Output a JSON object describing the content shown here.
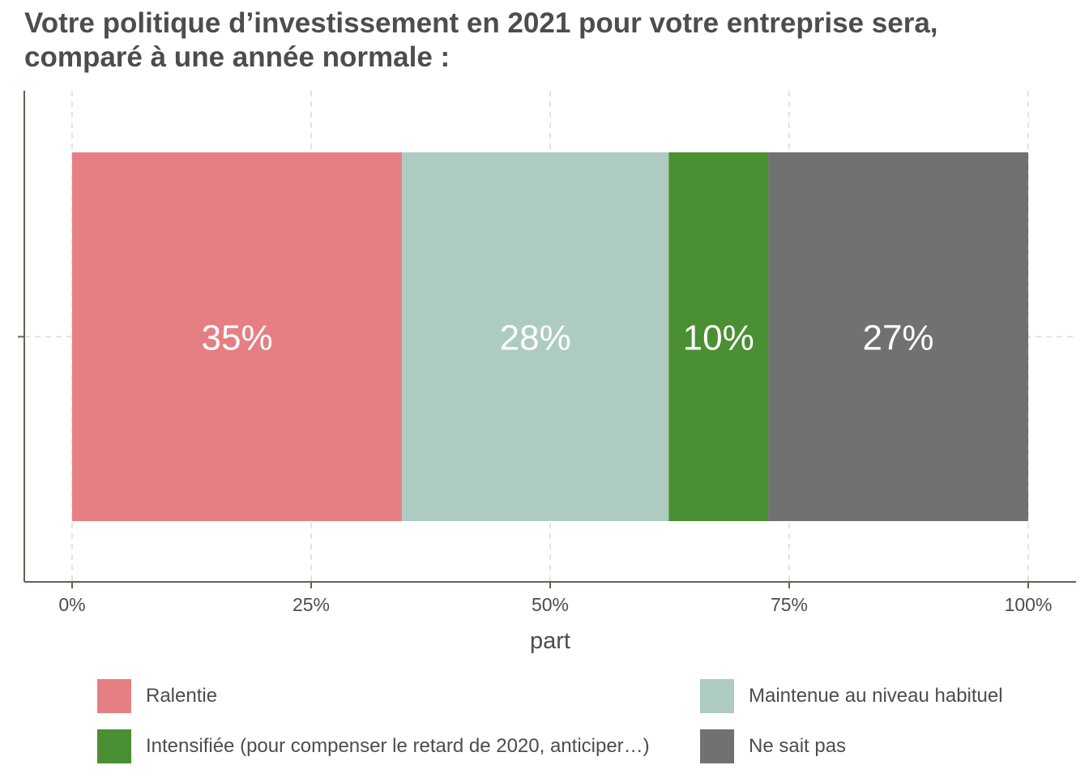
{
  "chart_data": {
    "type": "bar",
    "orientation": "horizontal",
    "stacked": true,
    "title_lines": [
      "Votre politique d’investissement en 2021 pour votre entreprise sera,",
      "comparé à une année normale :"
    ],
    "xlabel": "part",
    "ylabel": "",
    "xlim": [
      0,
      1
    ],
    "x_ticks": [
      0,
      0.25,
      0.5,
      0.75,
      1
    ],
    "x_tick_labels": [
      "0%",
      "25%",
      "50%",
      "75%",
      "100%"
    ],
    "grid": true,
    "legend_position": "bottom",
    "series": [
      {
        "name": "Ralentie",
        "value": 0.345,
        "label": "35%",
        "color": "#e67f83"
      },
      {
        "name": "Maintenue au niveau habituel",
        "value": 0.279,
        "label": "28%",
        "color": "#aecbc2"
      },
      {
        "name": "Intensifiée (pour compenser le retard de 2020, anticiper…)",
        "value": 0.104,
        "label": "10%",
        "color": "#4a8f32"
      },
      {
        "name": "Ne sait pas",
        "value": 0.272,
        "label": "27%",
        "color": "#717171"
      }
    ]
  }
}
